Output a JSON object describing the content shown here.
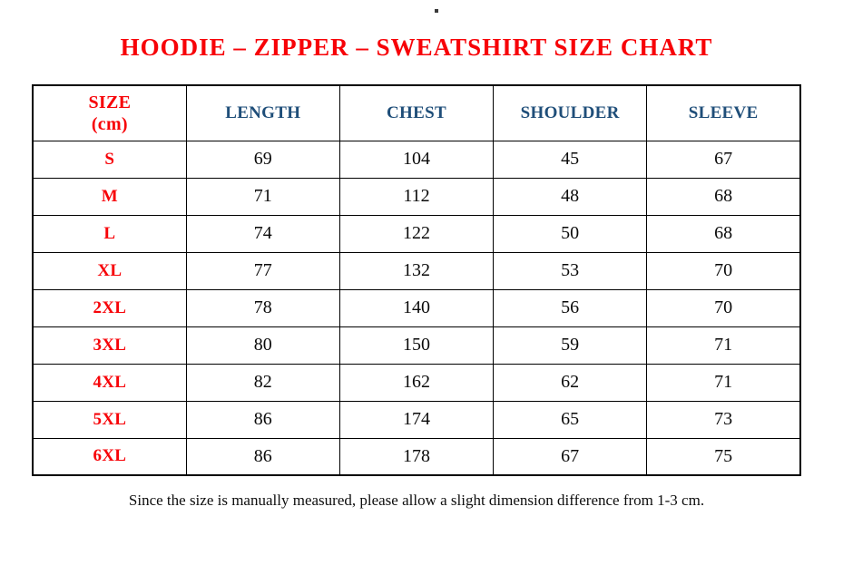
{
  "page": {
    "title": "HOODIE – ZIPPER – SWEATSHIRT SIZE CHART",
    "footnote": "Since the size is manually measured, please allow a slight dimension difference from 1-3 cm."
  },
  "colors": {
    "title_red": "#f70308",
    "header_blue": "#1f4e79",
    "text_black": "#0a0a0a",
    "border_black": "#000000"
  },
  "table": {
    "size_header": {
      "line1": "SIZE",
      "line2": "(cm)"
    },
    "measure_headers": [
      "LENGTH",
      "CHEST",
      "SHOULDER",
      "SLEEVE"
    ]
  },
  "chart_data": {
    "type": "table",
    "title": "HOODIE – ZIPPER – SWEATSHIRT SIZE CHART",
    "units": "cm",
    "columns": [
      "SIZE (cm)",
      "LENGTH",
      "CHEST",
      "SHOULDER",
      "SLEEVE"
    ],
    "rows": [
      {
        "size": "S",
        "values": [
          69,
          104,
          45,
          67
        ]
      },
      {
        "size": "M",
        "values": [
          71,
          112,
          48,
          68
        ]
      },
      {
        "size": "L",
        "values": [
          74,
          122,
          50,
          68
        ]
      },
      {
        "size": "XL",
        "values": [
          77,
          132,
          53,
          70
        ]
      },
      {
        "size": "2XL",
        "values": [
          78,
          140,
          56,
          70
        ]
      },
      {
        "size": "3XL",
        "values": [
          80,
          150,
          59,
          71
        ]
      },
      {
        "size": "4XL",
        "values": [
          82,
          162,
          62,
          71
        ]
      },
      {
        "size": "5XL",
        "values": [
          86,
          174,
          65,
          73
        ]
      },
      {
        "size": "6XL",
        "values": [
          86,
          178,
          67,
          75
        ]
      }
    ]
  }
}
